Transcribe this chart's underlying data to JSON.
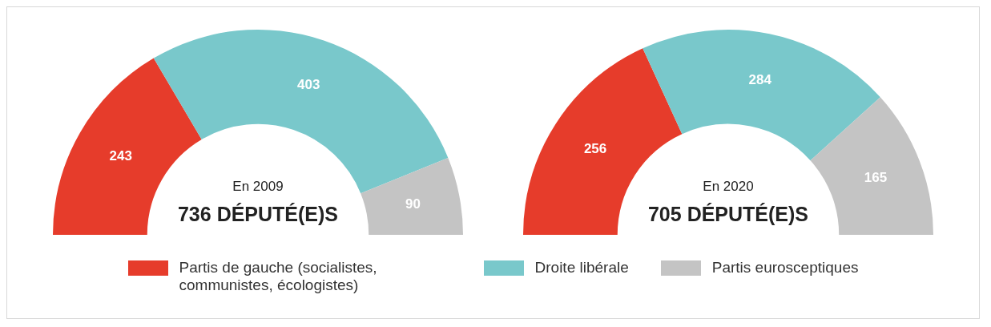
{
  "chart_data": [
    {
      "type": "donut",
      "categories": [
        "Partis de gauche (socialistes, communistes, écologistes)",
        "Droite libérale",
        "Partis eurosceptiques"
      ],
      "values": [
        243,
        403,
        90
      ],
      "colors": [
        "#e63c2b",
        "#79c8cb",
        "#c4c4c4"
      ],
      "data_labels": true,
      "legend": "bottom",
      "annotations": [
        "En 2009",
        "736 DÉPUTÉ(E)S"
      ]
    },
    {
      "type": "donut",
      "categories": [
        null,
        null,
        null
      ],
      "values": [
        256,
        284,
        165
      ],
      "colors": [
        "#e63c2b",
        "#79c8cb",
        "#c4c4c4"
      ],
      "data_labels": true,
      "annotations": [
        "En 2020",
        "705 DÉPUTÉ(E)S"
      ]
    }
  ]
}
